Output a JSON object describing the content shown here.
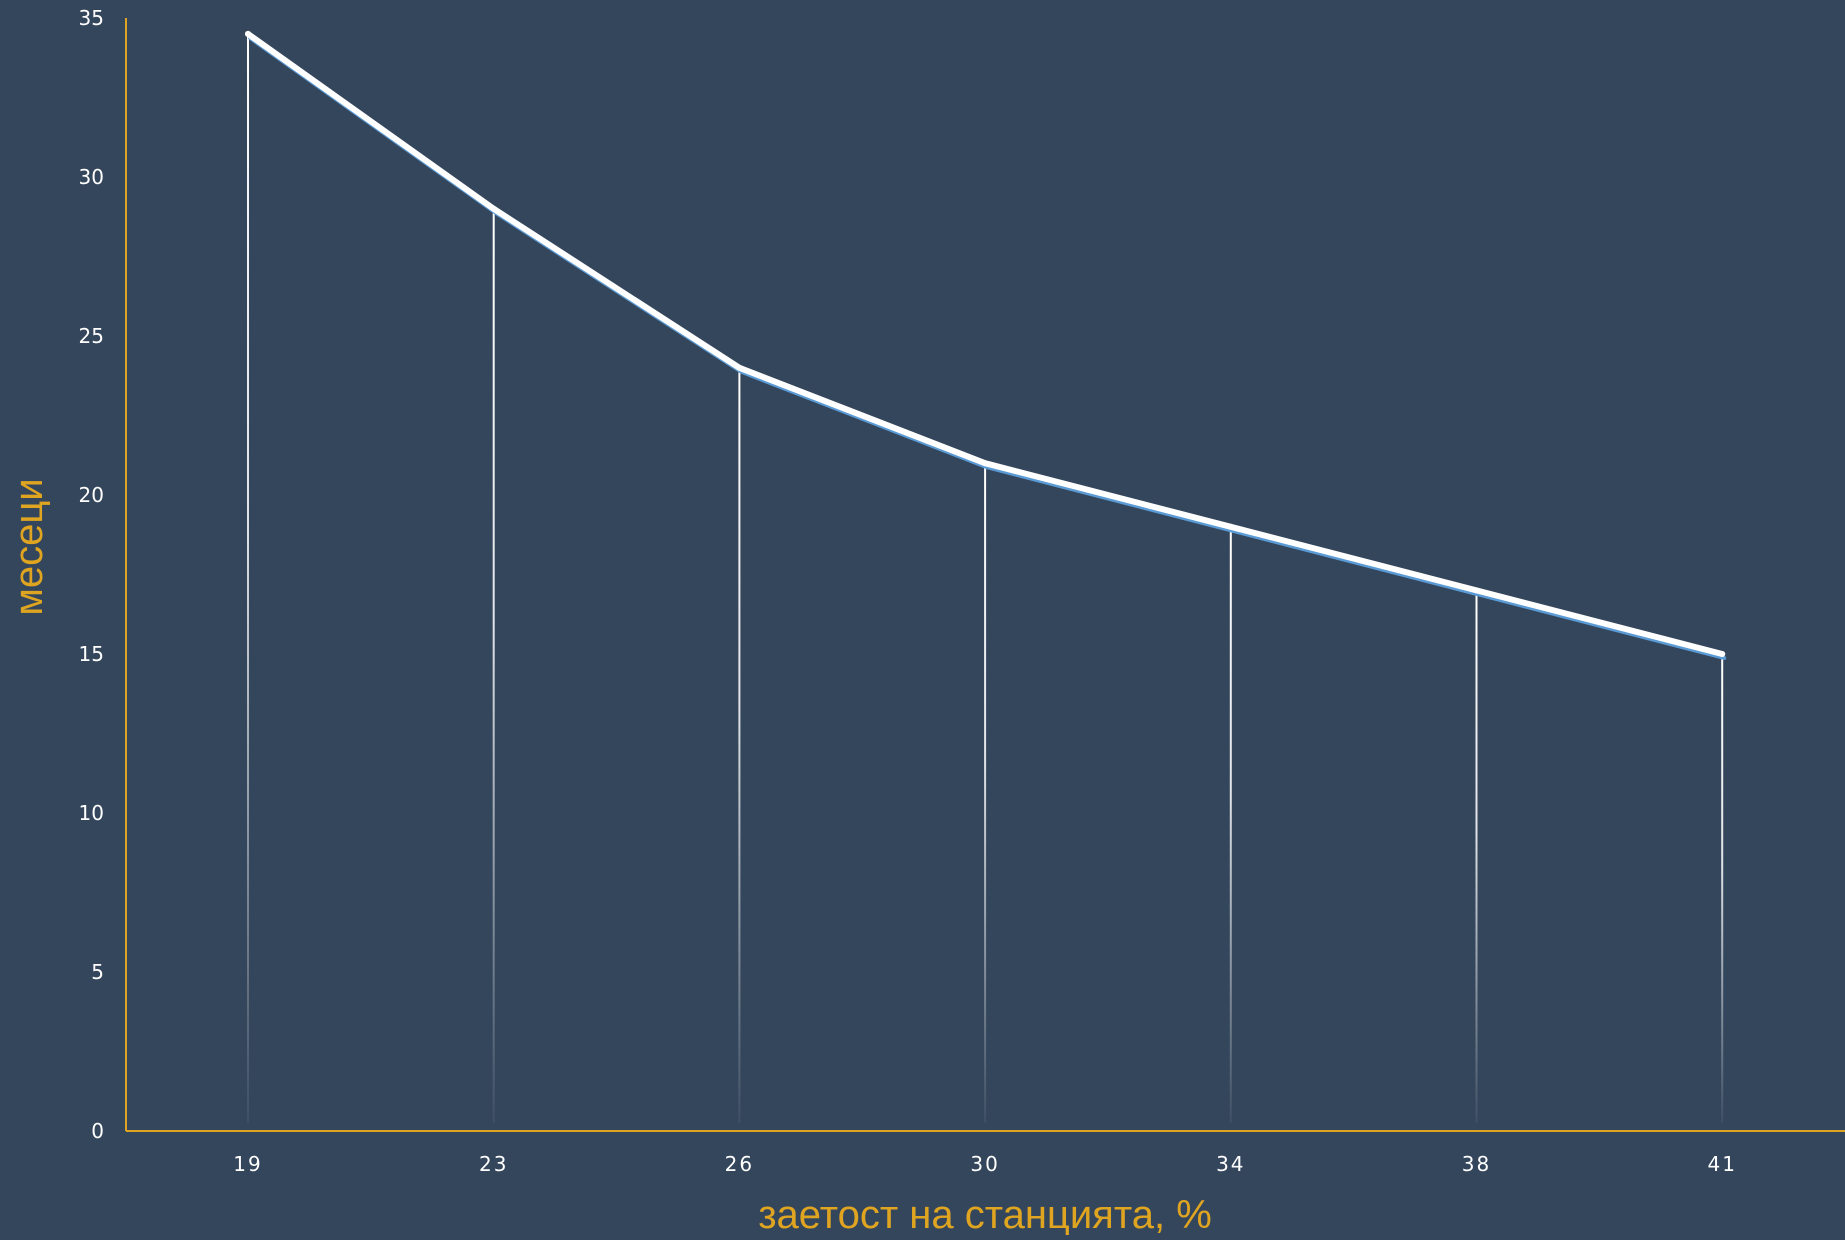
{
  "chart_data": {
    "type": "line",
    "title": "",
    "xlabel": "заетост на станцията, %",
    "ylabel": "месеци",
    "categories": [
      "19",
      "23",
      "26",
      "30",
      "34",
      "38",
      "41"
    ],
    "values": [
      34.5,
      29,
      24,
      21,
      19,
      17,
      15
    ],
    "yticks": [
      "0",
      "5",
      "10",
      "15",
      "20",
      "25",
      "30",
      "35"
    ],
    "ylim": [
      0,
      35
    ],
    "grid": false,
    "drop_lines": true,
    "legend": "none"
  },
  "colors": {
    "background": "#34465c",
    "axis": "#e0a520",
    "axis_title": "#e0a520",
    "line": "#ffffff",
    "line_shadow": "#5b9bd5",
    "tick_label": "#ffffff"
  }
}
